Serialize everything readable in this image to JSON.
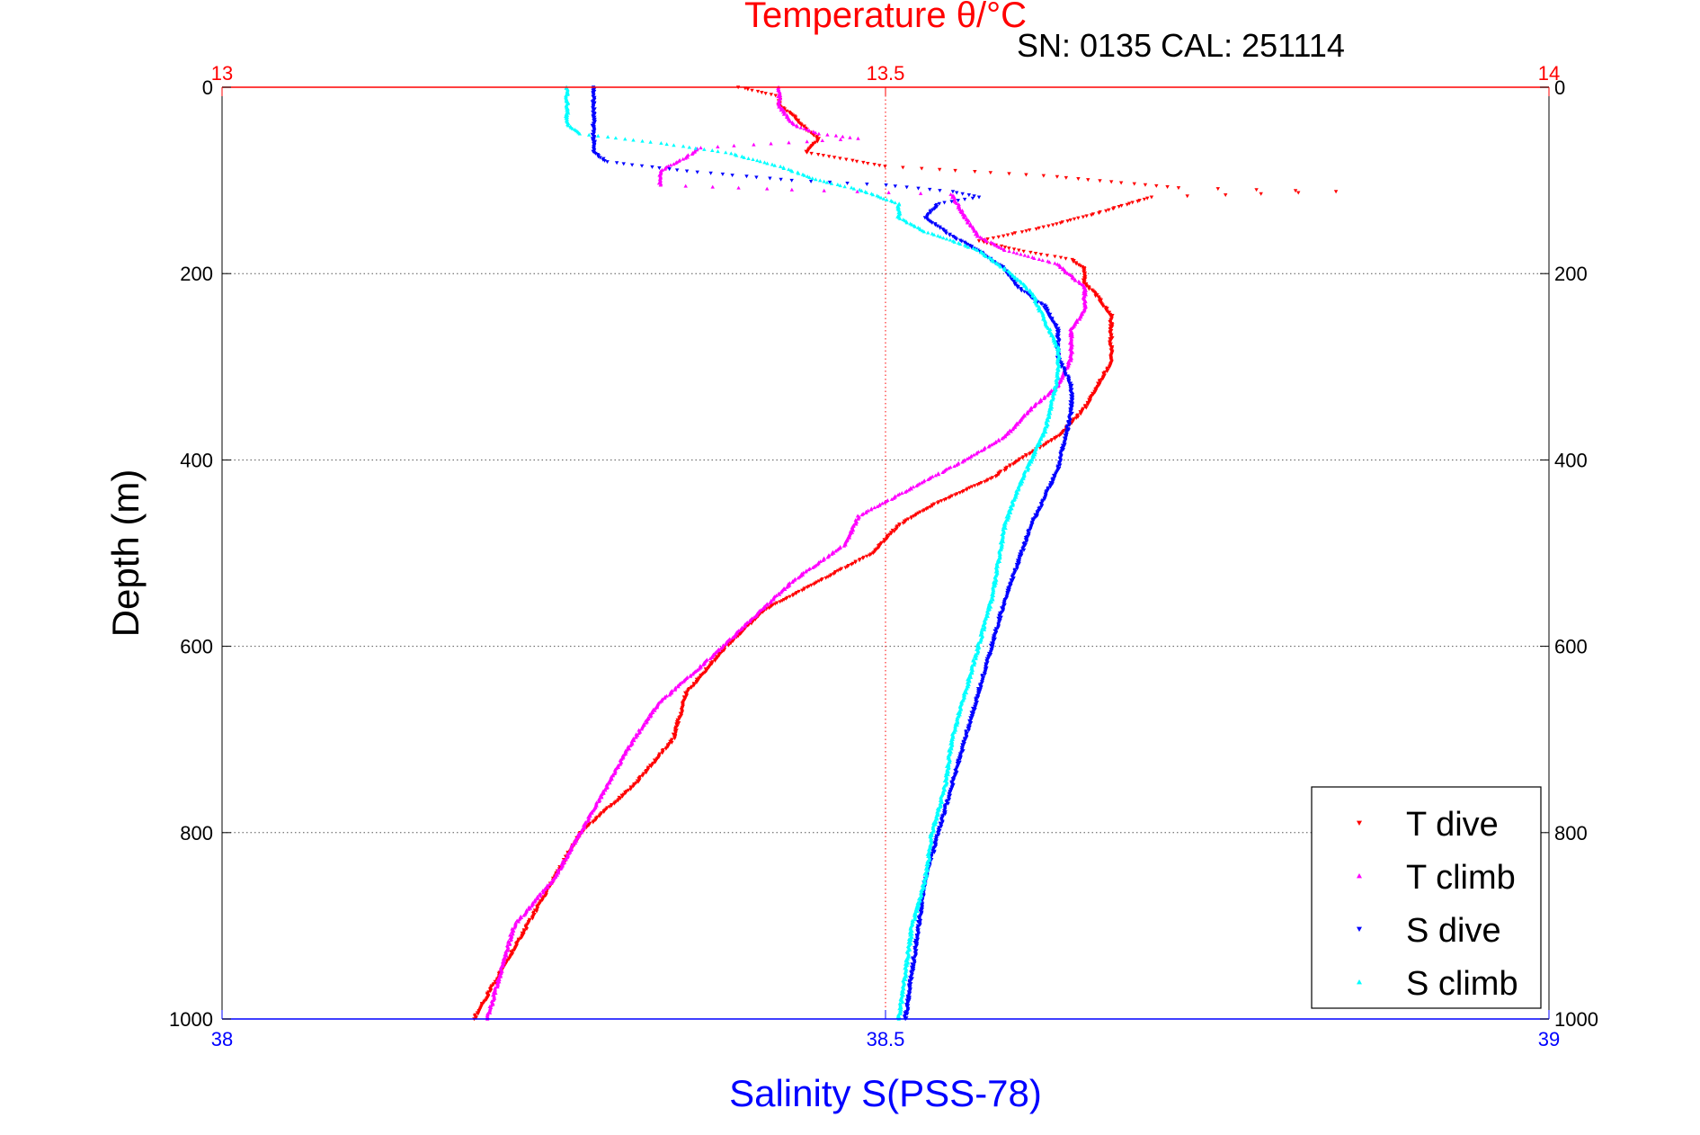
{
  "chart_data": {
    "type": "scatter",
    "title": "Temperature θ/°C",
    "subtitle": "SN: 0135  CAL: 251114",
    "xlabel": "Salinity S(PSS-78)",
    "ylabel": "Depth (m)",
    "top_axis": {
      "label": "Temperature θ/°C",
      "lim": [
        13,
        14
      ],
      "ticks": [
        "13",
        "13.5",
        "14"
      ],
      "color": "#ff0000"
    },
    "bottom_axis": {
      "label": "Salinity S(PSS-78)",
      "lim": [
        38,
        39
      ],
      "ticks": [
        "38",
        "38.5",
        "39"
      ],
      "color": "#0000ff"
    },
    "y_axis": {
      "lim": [
        0,
        1000
      ],
      "reversed": true,
      "ticks": [
        "0",
        "200",
        "400",
        "600",
        "800",
        "1000"
      ]
    },
    "grid": true,
    "legend_position": "bottom-right",
    "series": [
      {
        "name": "T dive",
        "axis": "top",
        "color": "#ff0000",
        "marker": "triangle-down",
        "points": [
          [
            13.39,
            0
          ],
          [
            13.42,
            10
          ],
          [
            13.42,
            20
          ],
          [
            13.43,
            30
          ],
          [
            13.44,
            45
          ],
          [
            13.45,
            55
          ],
          [
            13.44,
            70
          ],
          [
            13.5,
            85
          ],
          [
            13.62,
            95
          ],
          [
            13.72,
            108
          ],
          [
            13.84,
            112
          ],
          [
            13.7,
            118
          ],
          [
            13.66,
            135
          ],
          [
            13.62,
            150
          ],
          [
            13.57,
            165
          ],
          [
            13.6,
            175
          ],
          [
            13.64,
            185
          ],
          [
            13.65,
            195
          ],
          [
            13.65,
            210
          ],
          [
            13.66,
            225
          ],
          [
            13.67,
            245
          ],
          [
            13.67,
            270
          ],
          [
            13.67,
            295
          ],
          [
            13.66,
            320
          ],
          [
            13.65,
            345
          ],
          [
            13.63,
            375
          ],
          [
            13.6,
            400
          ],
          [
            13.58,
            420
          ],
          [
            13.54,
            445
          ],
          [
            13.51,
            470
          ],
          [
            13.49,
            500
          ],
          [
            13.45,
            530
          ],
          [
            13.41,
            560
          ],
          [
            13.38,
            600
          ],
          [
            13.35,
            650
          ],
          [
            13.34,
            700
          ],
          [
            13.31,
            750
          ],
          [
            13.27,
            800
          ],
          [
            13.25,
            850
          ],
          [
            13.23,
            900
          ],
          [
            13.21,
            950
          ],
          [
            13.19,
            1000
          ]
        ]
      },
      {
        "name": "T climb",
        "axis": "top",
        "color": "#ff00ff",
        "marker": "triangle-up",
        "points": [
          [
            13.42,
            0
          ],
          [
            13.42,
            20
          ],
          [
            13.43,
            40
          ],
          [
            13.45,
            50
          ],
          [
            13.48,
            55
          ],
          [
            13.36,
            65
          ],
          [
            13.35,
            75
          ],
          [
            13.33,
            90
          ],
          [
            13.33,
            105
          ],
          [
            13.43,
            110
          ],
          [
            13.55,
            115
          ],
          [
            13.56,
            140
          ],
          [
            13.57,
            160
          ],
          [
            13.59,
            175
          ],
          [
            13.63,
            190
          ],
          [
            13.65,
            215
          ],
          [
            13.65,
            240
          ],
          [
            13.64,
            260
          ],
          [
            13.64,
            290
          ],
          [
            13.63,
            320
          ],
          [
            13.61,
            345
          ],
          [
            13.59,
            375
          ],
          [
            13.56,
            400
          ],
          [
            13.52,
            430
          ],
          [
            13.48,
            460
          ],
          [
            13.47,
            490
          ],
          [
            13.43,
            530
          ],
          [
            13.4,
            570
          ],
          [
            13.37,
            610
          ],
          [
            13.33,
            660
          ],
          [
            13.31,
            700
          ],
          [
            13.29,
            750
          ],
          [
            13.27,
            800
          ],
          [
            13.25,
            850
          ],
          [
            13.22,
            900
          ],
          [
            13.21,
            950
          ],
          [
            13.2,
            1000
          ]
        ]
      },
      {
        "name": "S dive",
        "axis": "bottom",
        "color": "#0000ff",
        "marker": "triangle-down",
        "points": [
          [
            38.28,
            0
          ],
          [
            38.28,
            20
          ],
          [
            38.28,
            40
          ],
          [
            38.28,
            55
          ],
          [
            38.28,
            70
          ],
          [
            38.29,
            80
          ],
          [
            38.35,
            90
          ],
          [
            38.43,
            100
          ],
          [
            38.5,
            105
          ],
          [
            38.55,
            112
          ],
          [
            38.57,
            118
          ],
          [
            38.54,
            125
          ],
          [
            38.53,
            140
          ],
          [
            38.55,
            160
          ],
          [
            38.57,
            175
          ],
          [
            38.59,
            195
          ],
          [
            38.6,
            215
          ],
          [
            38.62,
            235
          ],
          [
            38.63,
            260
          ],
          [
            38.63,
            290
          ],
          [
            38.64,
            320
          ],
          [
            38.64,
            350
          ],
          [
            38.635,
            380
          ],
          [
            38.63,
            410
          ],
          [
            38.62,
            440
          ],
          [
            38.61,
            470
          ],
          [
            38.6,
            510
          ],
          [
            38.59,
            550
          ],
          [
            38.58,
            600
          ],
          [
            38.57,
            650
          ],
          [
            38.56,
            700
          ],
          [
            38.55,
            750
          ],
          [
            38.54,
            800
          ],
          [
            38.53,
            850
          ],
          [
            38.525,
            900
          ],
          [
            38.52,
            950
          ],
          [
            38.515,
            1000
          ]
        ]
      },
      {
        "name": "S climb",
        "axis": "bottom",
        "color": "#00ffff",
        "marker": "triangle-up",
        "points": [
          [
            38.26,
            0
          ],
          [
            38.26,
            20
          ],
          [
            38.26,
            40
          ],
          [
            38.27,
            50
          ],
          [
            38.33,
            60
          ],
          [
            38.38,
            70
          ],
          [
            38.42,
            85
          ],
          [
            38.45,
            100
          ],
          [
            38.48,
            110
          ],
          [
            38.51,
            125
          ],
          [
            38.51,
            140
          ],
          [
            38.53,
            155
          ],
          [
            38.55,
            165
          ],
          [
            38.57,
            175
          ],
          [
            38.59,
            195
          ],
          [
            38.61,
            220
          ],
          [
            38.62,
            250
          ],
          [
            38.63,
            280
          ],
          [
            38.63,
            310
          ],
          [
            38.625,
            340
          ],
          [
            38.62,
            370
          ],
          [
            38.61,
            400
          ],
          [
            38.6,
            430
          ],
          [
            38.59,
            470
          ],
          [
            38.585,
            510
          ],
          [
            38.58,
            550
          ],
          [
            38.57,
            600
          ],
          [
            38.56,
            650
          ],
          [
            38.55,
            700
          ],
          [
            38.545,
            750
          ],
          [
            38.535,
            800
          ],
          [
            38.53,
            850
          ],
          [
            38.52,
            900
          ],
          [
            38.515,
            950
          ],
          [
            38.51,
            1000
          ]
        ]
      }
    ]
  }
}
